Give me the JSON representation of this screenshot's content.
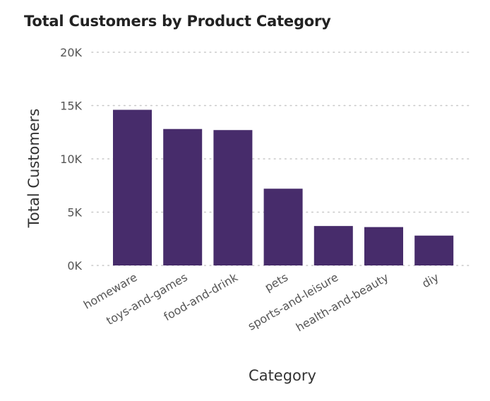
{
  "chart_data": {
    "type": "bar",
    "title": "Total Customers by Product Category",
    "xlabel": "Category",
    "ylabel": "Total Customers",
    "categories": [
      "homeware",
      "toys-and-games",
      "food-and-drink",
      "pets",
      "sports-and-leisure",
      "health-and-beauty",
      "diy"
    ],
    "values": [
      14600,
      12800,
      12700,
      7200,
      3700,
      3600,
      2800
    ],
    "ylim": [
      0,
      20000
    ],
    "yticks": [
      0,
      5000,
      10000,
      15000,
      20000
    ],
    "ytick_labels": [
      "0K",
      "5K",
      "10K",
      "15K",
      "20K"
    ],
    "grid": true,
    "legend": "none",
    "colors": {
      "bar": "#472c6b",
      "grid": "#c8c8c8",
      "tick_text": "#555555",
      "axis_title": "#333333",
      "title": "#222222"
    }
  }
}
